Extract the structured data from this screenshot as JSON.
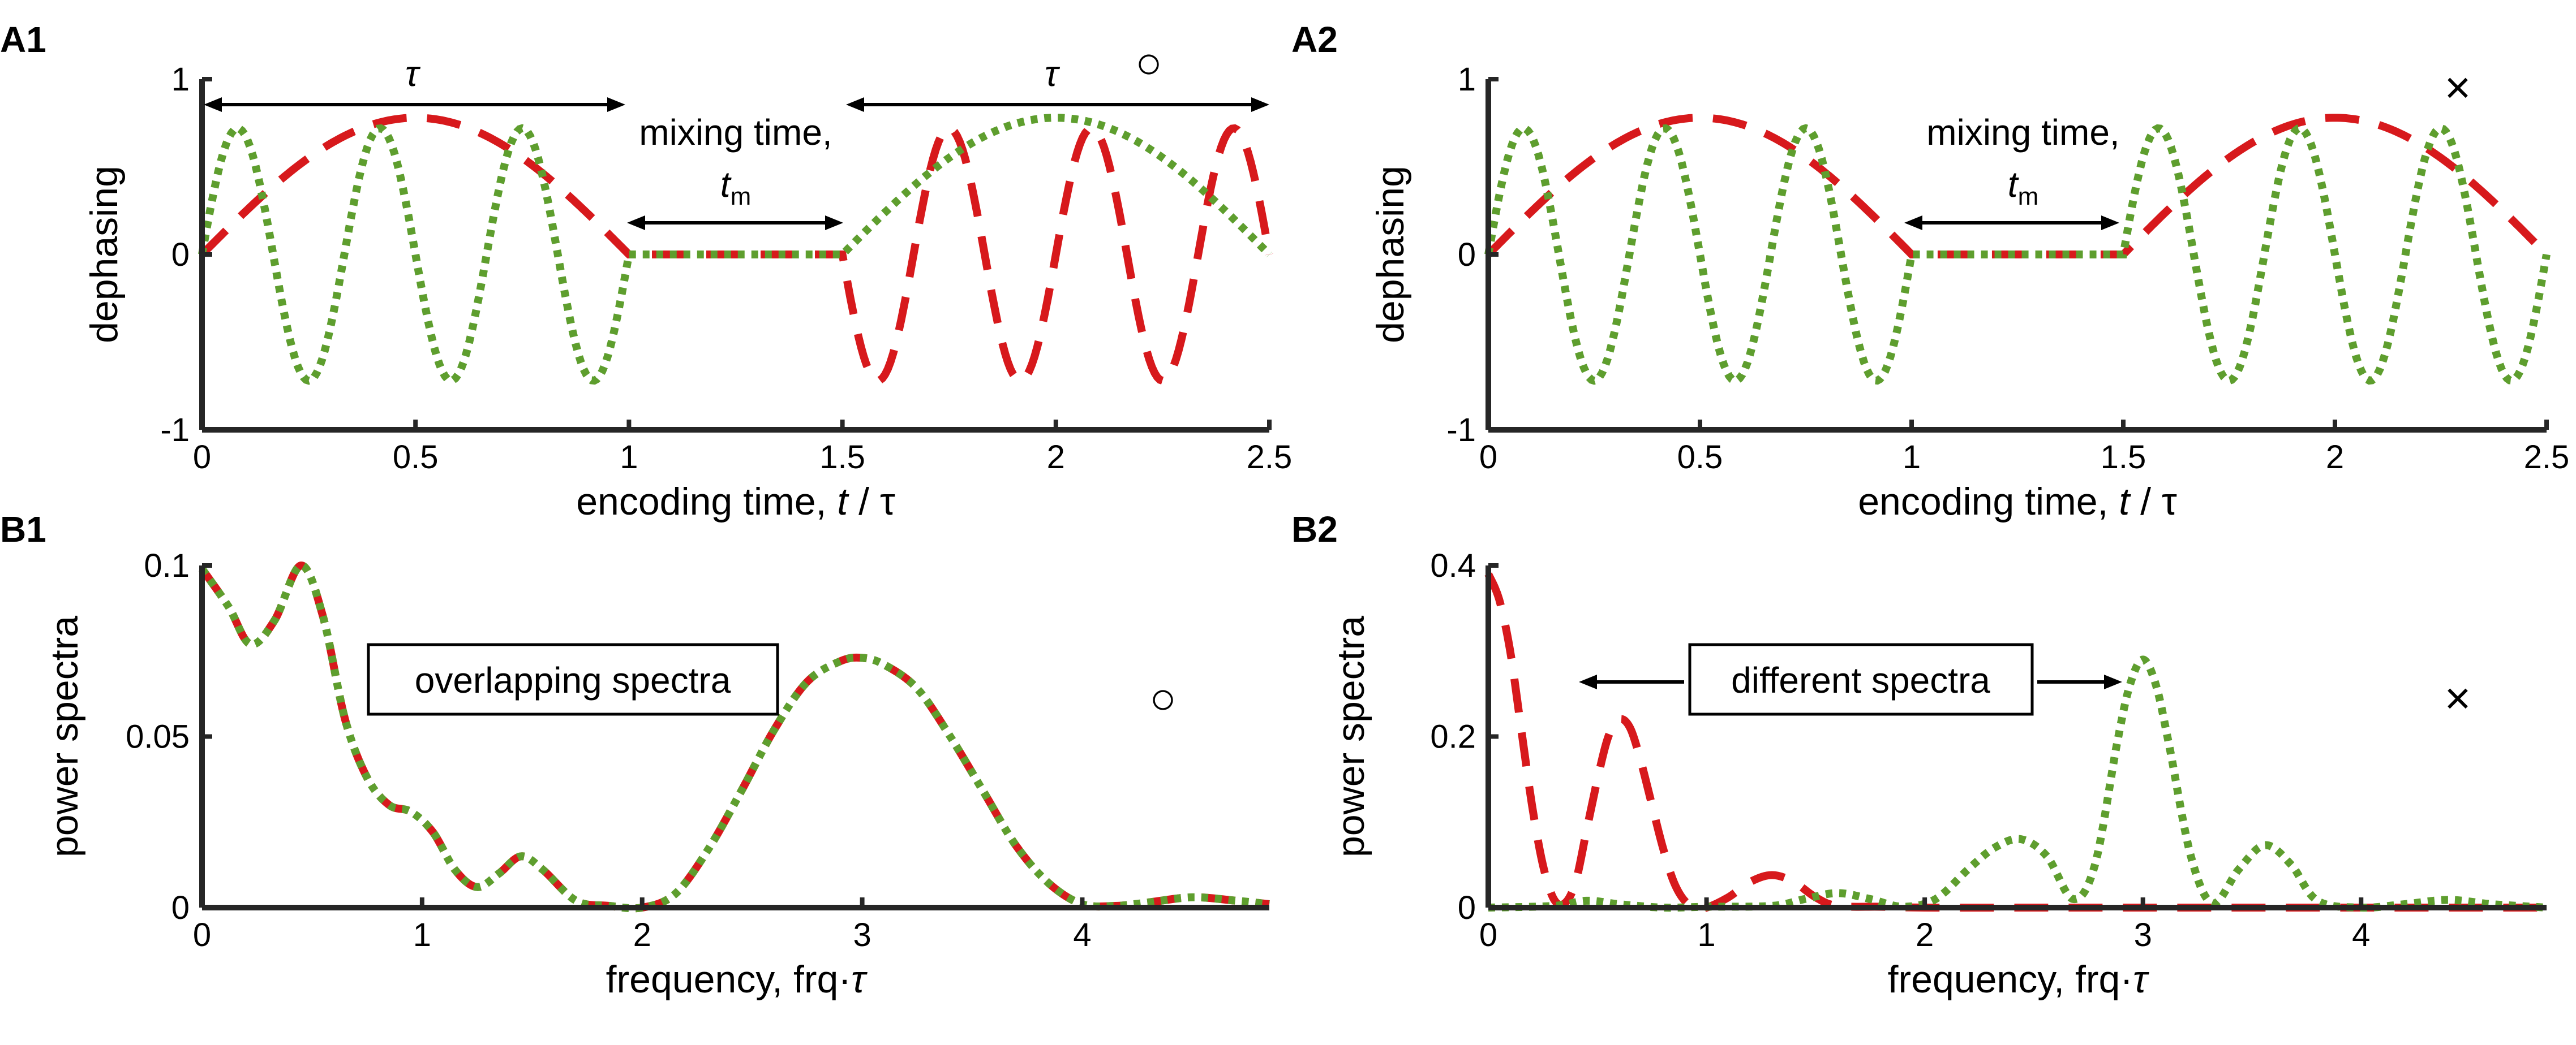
{
  "colors": {
    "red": "#d7191c",
    "green": "#5e9e2e"
  },
  "chart_data": [
    {
      "panel": "A1",
      "type": "line",
      "title": "",
      "xlabel": "encoding time, ",
      "xlabel_var": "t",
      "xlabel_tail": " / τ",
      "ylabel": "dephasing",
      "xlim": [
        0,
        2.5
      ],
      "ylim": [
        -1,
        1
      ],
      "xticks": [
        0,
        0.5,
        1,
        1.5,
        2,
        2.5
      ],
      "xtick_labels": [
        "0",
        "0.5",
        "1",
        "1.5",
        "2",
        "2.5"
      ],
      "yticks": [
        -1,
        0,
        1
      ],
      "ytick_labels": [
        "-1",
        "0",
        "1"
      ],
      "series": [
        {
          "name": "red dashed",
          "color": "red",
          "style": "dashed",
          "segments": [
            {
              "kind": "halfsine",
              "x0": 0,
              "x1": 1,
              "cycles": 1,
              "amp": 0.78
            },
            {
              "kind": "flat",
              "x0": 1,
              "x1": 1.5
            },
            {
              "kind": "oscneg",
              "x0": 1.5,
              "x1": 2.5,
              "cycles": 3,
              "amp": 0.72
            }
          ]
        },
        {
          "name": "green dotted",
          "color": "green",
          "style": "dotted",
          "segments": [
            {
              "kind": "oscpos",
              "x0": 0,
              "x1": 1,
              "cycles": 3,
              "amp": 0.72
            },
            {
              "kind": "flat",
              "x0": 1,
              "x1": 1.5
            },
            {
              "kind": "halfsine",
              "x0": 1.5,
              "x1": 2.5,
              "cycles": 1,
              "amp": 0.78
            }
          ]
        }
      ],
      "annotations": {
        "tau_left": "τ",
        "tau_right": "τ",
        "mixing_line1": "mixing time,",
        "mixing_var": "t",
        "mixing_sub": "m"
      },
      "marker": "○"
    },
    {
      "panel": "A2",
      "type": "line",
      "title": "",
      "xlabel": "encoding time, ",
      "xlabel_var": "t",
      "xlabel_tail": " / τ",
      "ylabel": "dephasing",
      "xlim": [
        0,
        2.5
      ],
      "ylim": [
        -1,
        1
      ],
      "xticks": [
        0,
        0.5,
        1,
        1.5,
        2,
        2.5
      ],
      "xtick_labels": [
        "0",
        "0.5",
        "1",
        "1.5",
        "2",
        "2.5"
      ],
      "yticks": [
        -1,
        0,
        1
      ],
      "ytick_labels": [
        "-1",
        "0",
        "1"
      ],
      "series": [
        {
          "name": "red dashed",
          "color": "red",
          "style": "dashed",
          "segments": [
            {
              "kind": "halfsine",
              "x0": 0,
              "x1": 1,
              "cycles": 1,
              "amp": 0.78
            },
            {
              "kind": "flat",
              "x0": 1,
              "x1": 1.5
            },
            {
              "kind": "halfsine",
              "x0": 1.5,
              "x1": 2.5,
              "cycles": 1,
              "amp": 0.78
            }
          ]
        },
        {
          "name": "green dotted",
          "color": "green",
          "style": "dotted",
          "segments": [
            {
              "kind": "oscpos",
              "x0": 0,
              "x1": 1,
              "cycles": 3,
              "amp": 0.72
            },
            {
              "kind": "flat",
              "x0": 1,
              "x1": 1.5
            },
            {
              "kind": "oscpos",
              "x0": 1.5,
              "x1": 2.5,
              "cycles": 3,
              "amp": 0.72
            }
          ]
        }
      ],
      "annotations": {
        "mixing_line1": "mixing time,",
        "mixing_var": "t",
        "mixing_sub": "m"
      },
      "marker": "×"
    },
    {
      "panel": "B1",
      "type": "line",
      "title": "",
      "xlabel": "frequency, frq·",
      "xlabel_var": "τ",
      "ylabel": "power spectra",
      "xlim": [
        0,
        4.85
      ],
      "ylim": [
        0,
        0.1
      ],
      "xticks": [
        0,
        1,
        2,
        3,
        4
      ],
      "xtick_labels": [
        "0",
        "1",
        "2",
        "3",
        "4"
      ],
      "yticks": [
        0,
        0.05,
        0.1
      ],
      "ytick_labels": [
        "0",
        "0.05",
        "0.1"
      ],
      "series": [
        {
          "name": "red dashed",
          "color": "red",
          "style": "dashed",
          "x": [
            0,
            0.12,
            0.22,
            0.33,
            0.45,
            0.55,
            0.65,
            0.75,
            0.85,
            0.95,
            1.05,
            1.15,
            1.25,
            1.35,
            1.45,
            1.55,
            1.7,
            1.85,
            2.0,
            2.15,
            2.3,
            2.45,
            2.6,
            2.75,
            2.9,
            3.0,
            3.1,
            3.25,
            3.4,
            3.55,
            3.7,
            3.85,
            4.0,
            4.15,
            4.3,
            4.5,
            4.7,
            4.85
          ],
          "values": [
            0.099,
            0.088,
            0.077,
            0.084,
            0.1,
            0.085,
            0.055,
            0.038,
            0.03,
            0.028,
            0.022,
            0.011,
            0.006,
            0.01,
            0.015,
            0.011,
            0.002,
            0.0005,
            0.0,
            0.004,
            0.017,
            0.034,
            0.052,
            0.066,
            0.072,
            0.073,
            0.071,
            0.064,
            0.05,
            0.034,
            0.018,
            0.007,
            0.001,
            0.0005,
            0.0015,
            0.003,
            0.002,
            0.001
          ]
        },
        {
          "name": "green dotted",
          "color": "green",
          "style": "dotted",
          "x": [
            0,
            0.12,
            0.22,
            0.33,
            0.45,
            0.55,
            0.65,
            0.75,
            0.85,
            0.95,
            1.05,
            1.15,
            1.25,
            1.35,
            1.45,
            1.55,
            1.7,
            1.85,
            2.0,
            2.15,
            2.3,
            2.45,
            2.6,
            2.75,
            2.9,
            3.0,
            3.1,
            3.25,
            3.4,
            3.55,
            3.7,
            3.85,
            4.0,
            4.15,
            4.3,
            4.5,
            4.7,
            4.85
          ],
          "values": [
            0.099,
            0.088,
            0.077,
            0.084,
            0.1,
            0.085,
            0.055,
            0.038,
            0.03,
            0.028,
            0.022,
            0.011,
            0.006,
            0.01,
            0.015,
            0.011,
            0.002,
            0.0005,
            0.0,
            0.004,
            0.017,
            0.034,
            0.052,
            0.066,
            0.072,
            0.073,
            0.071,
            0.064,
            0.05,
            0.034,
            0.018,
            0.007,
            0.001,
            0.0005,
            0.0015,
            0.003,
            0.002,
            0.001
          ]
        }
      ],
      "annotations": {
        "box_text": "overlapping spectra"
      },
      "marker": "○"
    },
    {
      "panel": "B2",
      "type": "line",
      "title": "",
      "xlabel": "frequency, frq·",
      "xlabel_var": "τ",
      "ylabel": "power spectra",
      "xlim": [
        0,
        4.85
      ],
      "ylim": [
        0,
        0.4
      ],
      "xticks": [
        0,
        1,
        2,
        3,
        4
      ],
      "xtick_labels": [
        "0",
        "1",
        "2",
        "3",
        "4"
      ],
      "yticks": [
        0,
        0.2,
        0.4
      ],
      "ytick_labels": [
        "0",
        "0.2",
        "0.4"
      ],
      "series": [
        {
          "name": "red dashed",
          "color": "red",
          "style": "dashed",
          "x": [
            0,
            0.05,
            0.1,
            0.15,
            0.2,
            0.25,
            0.3,
            0.35,
            0.4,
            0.45,
            0.5,
            0.55,
            0.6,
            0.65,
            0.7,
            0.75,
            0.8,
            0.85,
            0.9,
            0.95,
            1.0,
            1.1,
            1.2,
            1.3,
            1.4,
            1.5,
            1.6,
            1.8,
            2.0,
            2.5,
            3.0,
            3.5,
            4.0,
            4.5,
            4.85
          ],
          "values": [
            0.39,
            0.36,
            0.3,
            0.21,
            0.12,
            0.05,
            0.01,
            0.005,
            0.03,
            0.09,
            0.15,
            0.2,
            0.22,
            0.21,
            0.17,
            0.12,
            0.07,
            0.03,
            0.008,
            0.001,
            0.0,
            0.012,
            0.03,
            0.038,
            0.03,
            0.012,
            0.002,
            0.001,
            0.0,
            0.0,
            0.0,
            0.0,
            0.0,
            0.0,
            0.0
          ]
        },
        {
          "name": "green dotted",
          "color": "green",
          "style": "dotted",
          "x": [
            0,
            0.3,
            0.45,
            0.6,
            0.8,
            1.0,
            1.3,
            1.45,
            1.6,
            1.75,
            1.9,
            2.05,
            2.2,
            2.32,
            2.44,
            2.56,
            2.68,
            2.78,
            2.88,
            2.94,
            3.0,
            3.06,
            3.12,
            3.22,
            3.32,
            3.44,
            3.56,
            3.68,
            3.8,
            4.0,
            4.2,
            4.4,
            4.6,
            4.85
          ],
          "values": [
            0.0,
            0.002,
            0.008,
            0.004,
            0.0,
            0.001,
            0.002,
            0.01,
            0.017,
            0.01,
            0.001,
            0.01,
            0.045,
            0.07,
            0.08,
            0.06,
            0.01,
            0.05,
            0.19,
            0.26,
            0.29,
            0.26,
            0.19,
            0.06,
            0.005,
            0.045,
            0.073,
            0.05,
            0.008,
            0.0,
            0.004,
            0.009,
            0.004,
            0.0
          ]
        }
      ],
      "annotations": {
        "box_text": "different spectra"
      },
      "marker": "×"
    }
  ]
}
